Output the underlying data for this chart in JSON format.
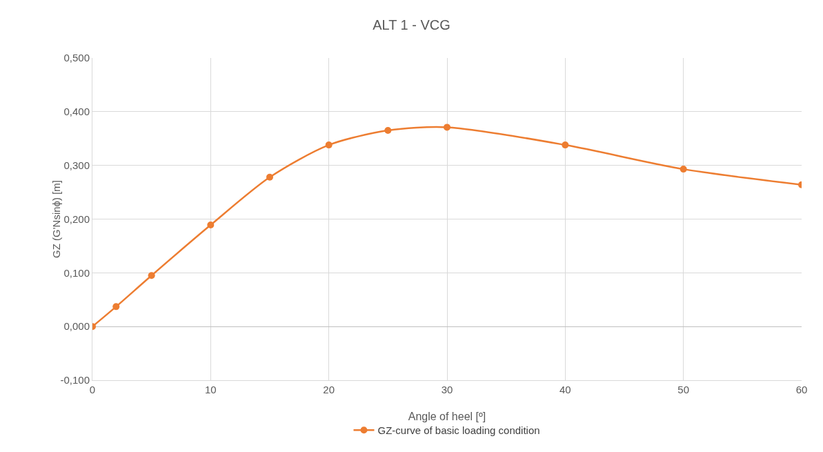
{
  "chart_data": {
    "type": "line",
    "title": "ALT 1 - VCG",
    "xlabel": "Angle of heel [º]",
    "ylabel": "GZ (G'Nsinϕ) [m]",
    "x": [
      0,
      2,
      5,
      10,
      15,
      20,
      25,
      30,
      40,
      50,
      60
    ],
    "series": [
      {
        "name": "GZ-curve of basic loading condition",
        "color": "#ed7d31",
        "values": [
          0,
          0.037,
          0.095,
          0.189,
          0.278,
          0.338,
          0.365,
          0.371,
          0.338,
          0.293,
          0.264
        ]
      }
    ],
    "xlim": [
      0,
      60
    ],
    "xticks": [
      0,
      10,
      20,
      30,
      40,
      50,
      60
    ],
    "ylim": [
      -0.1,
      0.5
    ],
    "yticks": [
      {
        "value": -0.1,
        "label": "-0,100"
      },
      {
        "value": 0,
        "label": "0,000"
      },
      {
        "value": 0.1,
        "label": "0,100"
      },
      {
        "value": 0.2,
        "label": "0,200"
      },
      {
        "value": 0.3,
        "label": "0,300"
      },
      {
        "value": 0.4,
        "label": "0,400"
      },
      {
        "value": 0.5,
        "label": "0,500"
      }
    ],
    "grid": true,
    "legend": "bottom",
    "marker": "circle",
    "line_style": "solid"
  }
}
